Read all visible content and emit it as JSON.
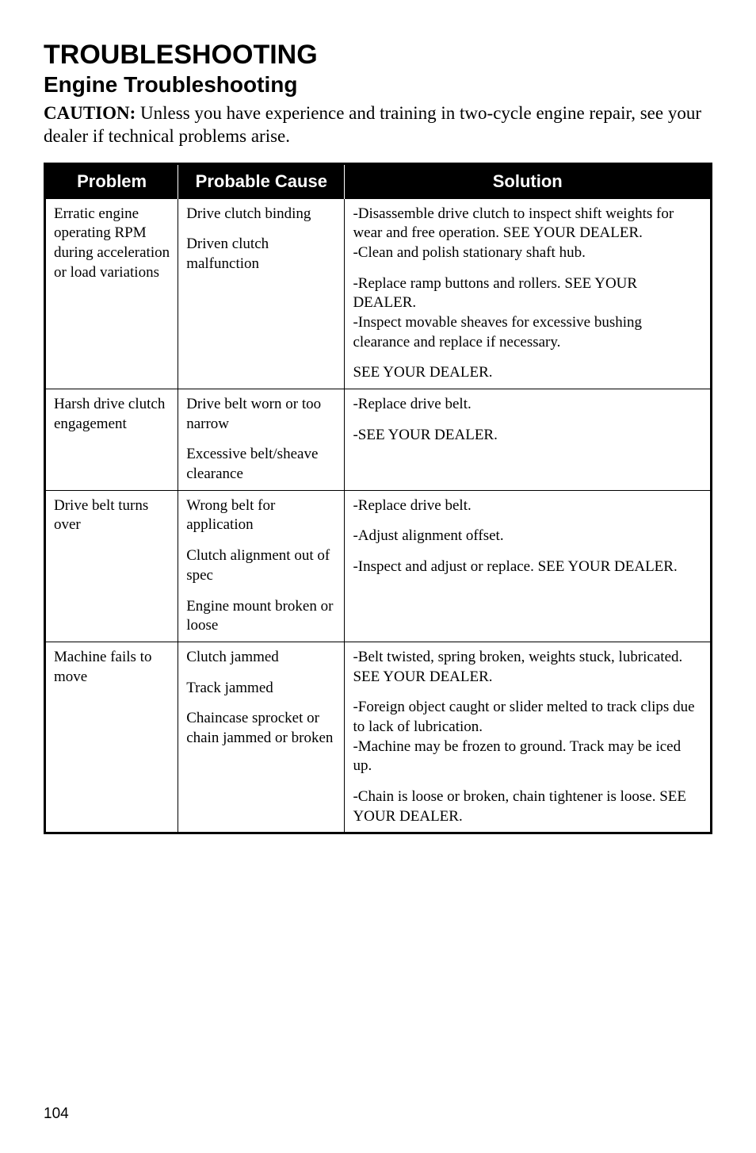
{
  "page": {
    "section_title": "TROUBLESHOOTING",
    "subsection_title": "Engine Troubleshooting",
    "caution_label": "CAUTION:",
    "caution_text": "Unless you have experience and training in two-cycle engine repair, see your dealer if technical problems arise.",
    "page_number": "104"
  },
  "typography": {
    "section_title_fontsize": 34,
    "subsection_title_fontsize": 28,
    "caution_fontsize": 23,
    "body_fontsize": 19,
    "header_fontsize": 22,
    "page_number_fontsize": 19
  },
  "colors": {
    "background": "#ffffff",
    "text": "#000000",
    "header_bg": "#000000",
    "header_text": "#ffffff",
    "border": "#000000"
  },
  "table": {
    "columns": [
      {
        "label": "Problem",
        "width": "20%"
      },
      {
        "label": "Probable Cause",
        "width": "25%"
      },
      {
        "label": "Solution",
        "width": "55%"
      }
    ],
    "rows": [
      {
        "problem": "Erratic engine operating RPM during acceleration or load variations",
        "causes": [
          "Drive clutch binding",
          "Driven clutch malfunction"
        ],
        "solutions": [
          "-Disassemble drive clutch to inspect shift weights for wear and free operation. SEE YOUR DEALER.\n-Clean and polish stationary shaft hub.",
          "-Replace ramp buttons and rollers. SEE YOUR DEALER.\n-Inspect movable sheaves for excessive bushing clearance and replace if necessary.",
          "SEE YOUR DEALER."
        ]
      },
      {
        "problem": "Harsh drive clutch engagement",
        "causes": [
          "Drive belt worn or too narrow",
          "Excessive belt/sheave clearance"
        ],
        "solutions": [
          "-Replace drive belt.",
          "-SEE YOUR DEALER."
        ]
      },
      {
        "problem": "Drive belt turns over",
        "causes": [
          "Wrong belt for application",
          "Clutch alignment out of spec",
          "Engine mount broken or loose"
        ],
        "solutions": [
          "-Replace drive belt.",
          "-Adjust alignment offset.",
          "-Inspect and adjust or replace. SEE YOUR DEALER."
        ]
      },
      {
        "problem": "Machine fails to move",
        "causes": [
          "Clutch jammed",
          "Track jammed",
          "Chaincase sprocket or chain jammed or broken"
        ],
        "solutions": [
          "-Belt twisted, spring broken, weights stuck, lubricated.  SEE YOUR DEALER.",
          "-Foreign object caught or slider melted to track clips due to lack of lubrication.\n-Machine may be frozen to ground.  Track may be iced up.",
          "-Chain is loose or broken, chain tightener is loose.  SEE YOUR DEALER."
        ]
      }
    ]
  }
}
